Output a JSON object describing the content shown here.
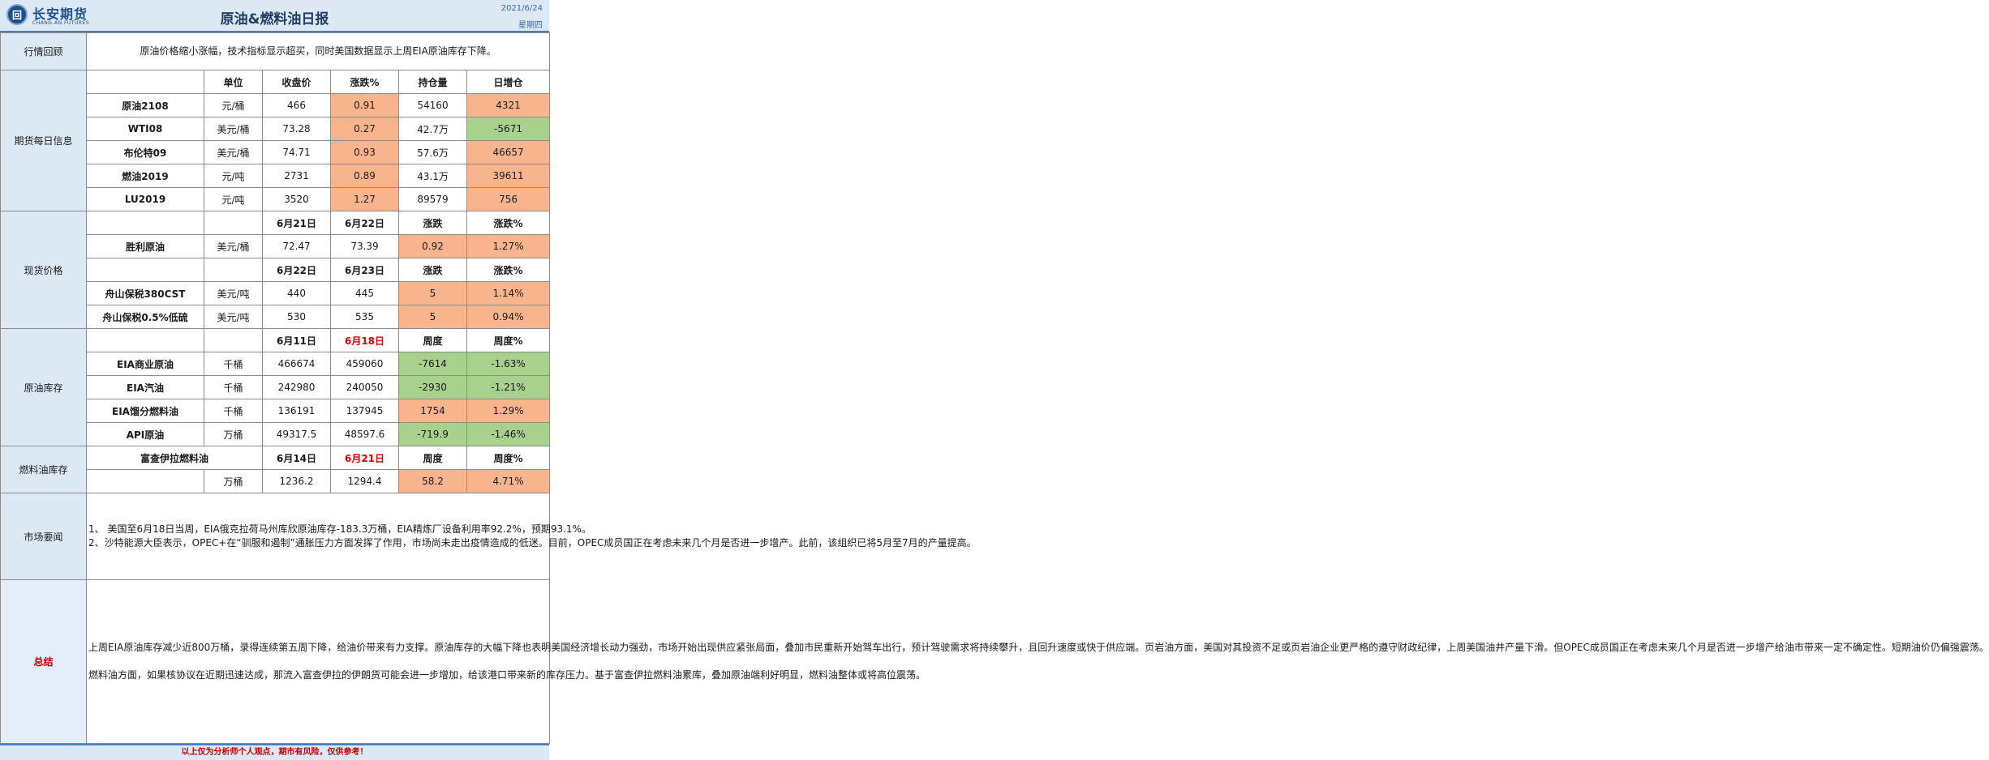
{
  "header": {
    "logo_glyph": "回",
    "company": "长安期货",
    "company_en": "CHANG-AN.FUTURES",
    "title": "原油&燃料油日报",
    "date": "2021/6/24",
    "weekday": "星期四"
  },
  "review": {
    "label": "行情回顾",
    "text": "原油价格缩小涨幅，技术指标显示超买，同时美国数据显示上周EIA原油库存下降。"
  },
  "futures": {
    "label": "期货每日信息",
    "headers": [
      "单位",
      "收盘价",
      "涨跌%",
      "持仓量",
      "日增仓"
    ],
    "rows": [
      {
        "name": "原油2108",
        "unit": "元/桶",
        "close": "466",
        "chg": "0.91",
        "oi": "54160",
        "oi_chg": "4321"
      },
      {
        "name": "WTI08",
        "unit": "美元/桶",
        "close": "73.28",
        "chg": "0.27",
        "oi": "42.7万",
        "oi_chg": "-5671"
      },
      {
        "name": "布伦特09",
        "unit": "美元/桶",
        "close": "74.71",
        "chg": "0.93",
        "oi": "57.6万",
        "oi_chg": "46657"
      },
      {
        "name": "燃油2019",
        "unit": "元/吨",
        "close": "2731",
        "chg": "0.89",
        "oi": "43.1万",
        "oi_chg": "39611"
      },
      {
        "name": "LU2019",
        "unit": "元/吨",
        "close": "3520",
        "chg": "1.27",
        "oi": "89579",
        "oi_chg": "756"
      }
    ]
  },
  "spot": {
    "label": "现货价格",
    "block1_headers": [
      "6月21日",
      "6月22日",
      "涨跌",
      "涨跌%"
    ],
    "block1_rows": [
      {
        "name": "胜利原油",
        "unit": "美元/桶",
        "d1": "72.47",
        "d2": "73.39",
        "chg": "0.92",
        "pct": "1.27%"
      }
    ],
    "block2_headers": [
      "6月22日",
      "6月23日",
      "涨跌",
      "涨跌%"
    ],
    "block2_rows": [
      {
        "name": "舟山保税380CST",
        "unit": "美元/吨",
        "d1": "440",
        "d2": "445",
        "chg": "5",
        "pct": "1.14%"
      },
      {
        "name": "舟山保税0.5%低硫",
        "unit": "美元/吨",
        "d1": "530",
        "d2": "535",
        "chg": "5",
        "pct": "0.94%"
      }
    ]
  },
  "crude_inv": {
    "label": "原油库存",
    "headers": [
      "6月11日",
      "6月18日",
      "周度",
      "周度%"
    ],
    "rows": [
      {
        "name": "EIA商业原油",
        "unit": "千桶",
        "d1": "466674",
        "d2": "459060",
        "chg": "-7614",
        "pct": "-1.63%"
      },
      {
        "name": "EIA汽油",
        "unit": "千桶",
        "d1": "242980",
        "d2": "240050",
        "chg": "-2930",
        "pct": "-1.21%"
      },
      {
        "name": "EIA馏分燃料油",
        "unit": "千桶",
        "d1": "136191",
        "d2": "137945",
        "chg": "1754",
        "pct": "1.29%"
      },
      {
        "name": "API原油",
        "unit": "万桶",
        "d1": "49317.5",
        "d2": "48597.6",
        "chg": "-719.9",
        "pct": "-1.46%"
      }
    ]
  },
  "fuel_inv": {
    "label": "燃料油库存",
    "name": "富查伊拉燃料油",
    "headers": [
      "6月14日",
      "6月21日",
      "周度",
      "周度%"
    ],
    "row": {
      "unit": "万桶",
      "d1": "1236.2",
      "d2": "1294.4",
      "chg": "58.2",
      "pct": "4.71%"
    }
  },
  "news": {
    "label": "市场要闻",
    "p1": "1、 美国至6月18日当周，EIA俄克拉荷马州库欣原油库存-183.3万桶，EIA精炼厂设备利用率92.2%，预期93.1%。",
    "p2": "2、沙特能源大臣表示，OPEC+在“驯服和遏制”通胀压力方面发挥了作用，市场尚未走出疫情造成的低迷。目前，OPEC成员国正在考虑未来几个月是否进一步增产。此前，该组织已将5月至7月的产量提高。"
  },
  "summary": {
    "label": "总结",
    "p1": "上周EIA原油库存减少近800万桶，录得连续第五周下降，给油价带来有力支撑。原油库存的大幅下降也表明美国经济增长动力强劲，市场开始出现供应紧张局面，叠加市民重新开始驾车出行，预计驾驶需求将持续攀升，且回升速度或快于供应端。页岩油方面，美国对其投资不足或页岩油企业更严格的遵守财政纪律，上周美国油井产量下滑。但OPEC成员国正在考虑未来几个月是否进一步增产给油市带来一定不确定性。短期油价仍偏强震荡。",
    "p2": "燃料油方面，如果核协议在近期迅速达成，那流入富查伊拉的伊朗货可能会进一步增加，给该港口带来新的库存压力。基于富查伊拉燃料油累库，叠加原油端利好明显，燃料油整体或将高位震荡。"
  },
  "footer": {
    "disclaimer": "以上仅为分析师个人观点，期市有风险，仅供参考！"
  },
  "colors": {
    "up": "#f8b48c",
    "down": "#a9d18e",
    "section_bg": "#dce9f5",
    "accent": "#1f4e8c"
  }
}
